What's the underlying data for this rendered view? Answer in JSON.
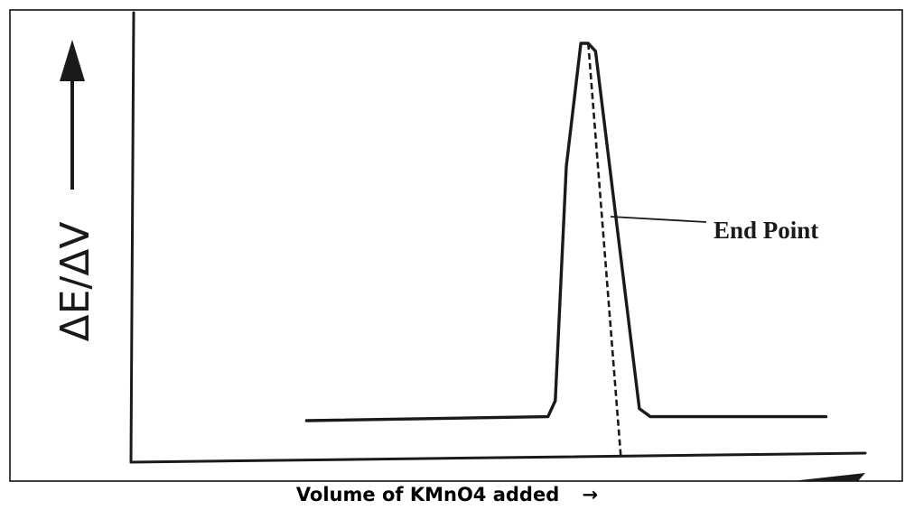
{
  "chart_data": {
    "type": "line",
    "title": "",
    "xlabel": "Volume of KMnO4 added",
    "xlabel_arrow": "→",
    "ylabel": "ΔE/ΔV",
    "annotation": "End Point",
    "grid": false,
    "legend": "none",
    "xlim": [
      0,
      100
    ],
    "ylim": [
      0,
      100
    ],
    "series": [
      {
        "x": [
          24,
          57,
          58,
          59.5,
          61.5,
          62.5,
          63.5,
          69.5,
          71,
          95
        ],
        "y": [
          5,
          6,
          10,
          69,
          100,
          100,
          98,
          8,
          6,
          6
        ]
      }
    ],
    "end_point": {
      "x": 62.5,
      "y_top": 100
    }
  }
}
